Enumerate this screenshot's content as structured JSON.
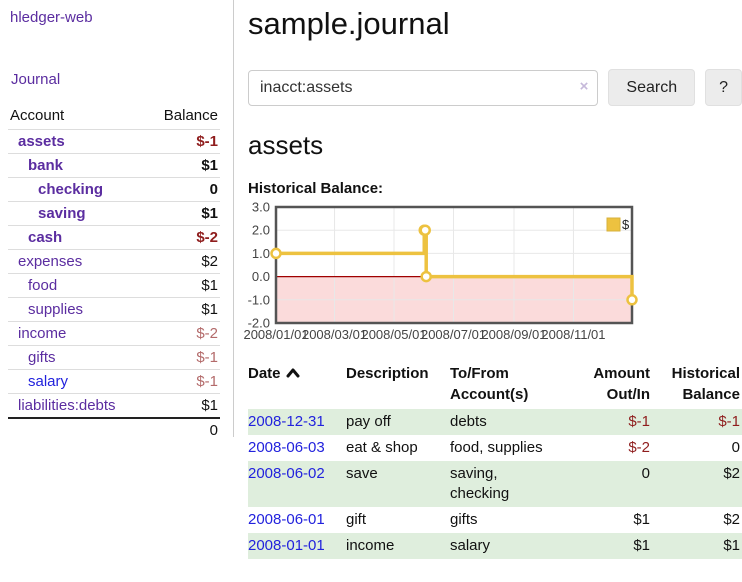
{
  "app": {
    "title": "hledger-web"
  },
  "nav": {
    "journal": "Journal"
  },
  "sidebar": {
    "header": {
      "account": "Account",
      "balance": "Balance"
    },
    "accounts": [
      {
        "name": "assets",
        "balance": "$-1",
        "depth": 1,
        "selected": true,
        "balcls": "neg-strong"
      },
      {
        "name": "bank",
        "balance": "$1",
        "depth": 2,
        "selected": true,
        "balcls": ""
      },
      {
        "name": "checking",
        "balance": "0",
        "depth": 3,
        "selected": true,
        "balcls": ""
      },
      {
        "name": "saving",
        "balance": "$1",
        "depth": 3,
        "selected": true,
        "balcls": ""
      },
      {
        "name": "cash",
        "balance": "$-2",
        "depth": 2,
        "selected": true,
        "balcls": "neg-strong"
      },
      {
        "name": "expenses",
        "balance": "$2",
        "depth": 1,
        "selected": false,
        "balcls": ""
      },
      {
        "name": "food",
        "balance": "$1",
        "depth": 2,
        "selected": false,
        "balcls": ""
      },
      {
        "name": "supplies",
        "balance": "$1",
        "depth": 2,
        "selected": false,
        "balcls": ""
      },
      {
        "name": "income",
        "balance": "$-2",
        "depth": 1,
        "selected": false,
        "balcls": "neg-muted"
      },
      {
        "name": "gifts",
        "balance": "$-1",
        "depth": 2,
        "selected": false,
        "balcls": "neg-muted"
      },
      {
        "name": "salary",
        "balance": "$-1",
        "depth": 2,
        "selected": false,
        "balcls": "neg-muted",
        "blue": true
      },
      {
        "name": "liabilities:debts",
        "balance": "$1",
        "depth": 1,
        "selected": false,
        "balcls": ""
      }
    ],
    "total": "0"
  },
  "page": {
    "title": "sample.journal"
  },
  "search": {
    "value": "inacct:assets",
    "clear": "×",
    "button": "Search",
    "help": "?"
  },
  "section": {
    "heading": "assets"
  },
  "chart_data": {
    "type": "line",
    "title": "Historical Balance:",
    "legend": "$",
    "legend_position": "top-right",
    "grid": true,
    "xlim": [
      "2008-01-01",
      "2008-12-31"
    ],
    "ylim": [
      -2,
      3
    ],
    "y_ticks": [
      "3.0",
      "2.0",
      "1.0",
      "0.0",
      "-1.0",
      "-2.0"
    ],
    "x_ticks": [
      "2008/01/01",
      "2008/03/01",
      "2008/05/01",
      "2008/07/01",
      "2008/09/01",
      "2008/11/01"
    ],
    "series": [
      {
        "name": "$",
        "points": [
          [
            "2008-01-01",
            1
          ],
          [
            "2008-06-01",
            2
          ],
          [
            "2008-06-02",
            2
          ],
          [
            "2008-06-03",
            0
          ],
          [
            "2008-12-31",
            -1
          ]
        ]
      }
    ],
    "colors": {
      "line": "#edc240",
      "marker_fill": "#ffffff",
      "negative_region": "#fbdbdb",
      "zero_line": "#a00000",
      "gridline": "#e8e8e8",
      "border": "#545454",
      "tick_label": "#444444"
    }
  },
  "register": {
    "headers": {
      "date": "Date",
      "description": "Description",
      "accounts": "To/From Account(s)",
      "amount": "Amount Out/In",
      "balance": "Historical Balance"
    },
    "rows": [
      {
        "date": "2008-12-31",
        "description": "pay off",
        "accounts": "debts",
        "amount": "$-1",
        "balance": "$-1"
      },
      {
        "date": "2008-06-03",
        "description": "eat & shop",
        "accounts": "food, supplies",
        "amount": "$-2",
        "balance": "0"
      },
      {
        "date": "2008-06-02",
        "description": "save",
        "accounts": "saving, checking",
        "amount": "0",
        "balance": "$2"
      },
      {
        "date": "2008-06-01",
        "description": "gift",
        "accounts": "gifts",
        "amount": "$1",
        "balance": "$2"
      },
      {
        "date": "2008-01-01",
        "description": "income",
        "accounts": "salary",
        "amount": "$1",
        "balance": "$1"
      }
    ]
  }
}
